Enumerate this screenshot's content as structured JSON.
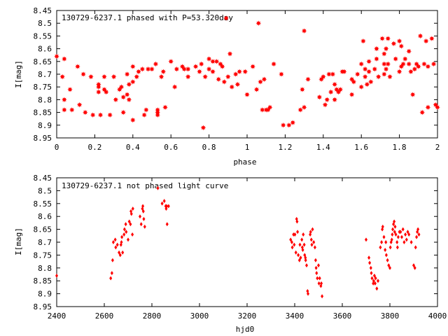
{
  "chart_data": [
    {
      "type": "scatter",
      "title": "130729-6237.1 phased with P=53.320day",
      "xlabel": "phase",
      "ylabel": "I[mag]",
      "xlim": [
        0,
        2
      ],
      "ylim": [
        8.95,
        8.45
      ],
      "y_reversed": true,
      "xticks": [
        "0",
        "0.2",
        "0.4",
        "0.6",
        "0.8",
        "1",
        "1.2",
        "1.4",
        "1.6",
        "1.8",
        "2"
      ],
      "yticks": [
        "8.45",
        "8.5",
        "8.55",
        "8.6",
        "8.65",
        "8.7",
        "8.75",
        "8.8",
        "8.85",
        "8.9",
        "8.95"
      ],
      "grid": false,
      "marker_color": "#ff0000",
      "marker": "asterisk",
      "points": [
        [
          0.0,
          8.63
        ],
        [
          0.03,
          8.71
        ],
        [
          0.04,
          8.64
        ],
        [
          0.04,
          8.8
        ],
        [
          0.04,
          8.84
        ],
        [
          0.07,
          8.76
        ],
        [
          0.08,
          8.84
        ],
        [
          0.11,
          8.67
        ],
        [
          0.12,
          8.82
        ],
        [
          0.14,
          8.7
        ],
        [
          0.15,
          8.85
        ],
        [
          0.18,
          8.71
        ],
        [
          0.19,
          8.86
        ],
        [
          0.22,
          8.74
        ],
        [
          0.22,
          8.75
        ],
        [
          0.22,
          8.77
        ],
        [
          0.23,
          8.86
        ],
        [
          0.25,
          8.71
        ],
        [
          0.25,
          8.76
        ],
        [
          0.26,
          8.77
        ],
        [
          0.28,
          8.86
        ],
        [
          0.3,
          8.71
        ],
        [
          0.31,
          8.8
        ],
        [
          0.33,
          8.76
        ],
        [
          0.34,
          8.75
        ],
        [
          0.35,
          8.79
        ],
        [
          0.35,
          8.85
        ],
        [
          0.37,
          8.7
        ],
        [
          0.37,
          8.78
        ],
        [
          0.38,
          8.74
        ],
        [
          0.38,
          8.8
        ],
        [
          0.4,
          8.67
        ],
        [
          0.4,
          8.73
        ],
        [
          0.4,
          8.88
        ],
        [
          0.42,
          8.71
        ],
        [
          0.43,
          8.69
        ],
        [
          0.45,
          8.68
        ],
        [
          0.46,
          8.86
        ],
        [
          0.47,
          8.84
        ],
        [
          0.48,
          8.68
        ],
        [
          0.5,
          8.68
        ],
        [
          0.52,
          8.66
        ],
        [
          0.53,
          8.84
        ],
        [
          0.53,
          8.85
        ],
        [
          0.53,
          8.86
        ],
        [
          0.55,
          8.71
        ],
        [
          0.56,
          8.69
        ],
        [
          0.57,
          8.83
        ],
        [
          0.6,
          8.65
        ],
        [
          0.62,
          8.75
        ],
        [
          0.63,
          8.68
        ],
        [
          0.66,
          8.67
        ],
        [
          0.67,
          8.68
        ],
        [
          0.69,
          8.68
        ],
        [
          0.69,
          8.71
        ],
        [
          0.73,
          8.67
        ],
        [
          0.75,
          8.69
        ],
        [
          0.76,
          8.66
        ],
        [
          0.77,
          8.91
        ],
        [
          0.78,
          8.71
        ],
        [
          0.8,
          8.64
        ],
        [
          0.8,
          8.68
        ],
        [
          0.82,
          8.65
        ],
        [
          0.82,
          8.69
        ],
        [
          0.84,
          8.65
        ],
        [
          0.85,
          8.72
        ],
        [
          0.86,
          8.66
        ],
        [
          0.87,
          8.67
        ],
        [
          0.88,
          8.73
        ],
        [
          0.89,
          8.48
        ],
        [
          0.9,
          8.71
        ],
        [
          0.91,
          8.62
        ],
        [
          0.92,
          8.75
        ],
        [
          0.94,
          8.7
        ],
        [
          0.95,
          8.74
        ],
        [
          0.96,
          8.69
        ],
        [
          0.99,
          8.69
        ],
        [
          1.0,
          8.78
        ],
        [
          1.03,
          8.67
        ],
        [
          1.05,
          8.76
        ],
        [
          1.06,
          8.5
        ],
        [
          1.07,
          8.73
        ],
        [
          1.08,
          8.84
        ],
        [
          1.09,
          8.72
        ],
        [
          1.1,
          8.84
        ],
        [
          1.11,
          8.84
        ],
        [
          1.12,
          8.83
        ],
        [
          1.14,
          8.66
        ],
        [
          1.18,
          8.7
        ],
        [
          1.19,
          8.9
        ],
        [
          1.22,
          8.9
        ],
        [
          1.24,
          8.89
        ],
        [
          1.28,
          8.84
        ],
        [
          1.29,
          8.76
        ],
        [
          1.3,
          8.53
        ],
        [
          1.3,
          8.83
        ],
        [
          1.32,
          8.72
        ],
        [
          1.38,
          8.79
        ],
        [
          1.39,
          8.72
        ],
        [
          1.4,
          8.71
        ],
        [
          1.41,
          8.82
        ],
        [
          1.42,
          8.8
        ],
        [
          1.43,
          8.7
        ],
        [
          1.44,
          8.77
        ],
        [
          1.45,
          8.7
        ],
        [
          1.46,
          8.74
        ],
        [
          1.46,
          8.8
        ],
        [
          1.47,
          8.76
        ],
        [
          1.48,
          8.77
        ],
        [
          1.49,
          8.76
        ],
        [
          1.5,
          8.69
        ],
        [
          1.51,
          8.69
        ],
        [
          1.55,
          8.72
        ],
        [
          1.55,
          8.78
        ],
        [
          1.56,
          8.73
        ],
        [
          1.58,
          8.7
        ],
        [
          1.6,
          8.66
        ],
        [
          1.6,
          8.75
        ],
        [
          1.61,
          8.57
        ],
        [
          1.62,
          8.68
        ],
        [
          1.62,
          8.71
        ],
        [
          1.63,
          8.74
        ],
        [
          1.64,
          8.65
        ],
        [
          1.64,
          8.69
        ],
        [
          1.65,
          8.73
        ],
        [
          1.67,
          8.68
        ],
        [
          1.68,
          8.6
        ],
        [
          1.68,
          8.64
        ],
        [
          1.69,
          8.71
        ],
        [
          1.71,
          8.56
        ],
        [
          1.72,
          8.62
        ],
        [
          1.72,
          8.66
        ],
        [
          1.72,
          8.7
        ],
        [
          1.73,
          8.6
        ],
        [
          1.73,
          8.68
        ],
        [
          1.74,
          8.56
        ],
        [
          1.74,
          8.66
        ],
        [
          1.75,
          8.71
        ],
        [
          1.77,
          8.58
        ],
        [
          1.78,
          8.64
        ],
        [
          1.8,
          8.57
        ],
        [
          1.8,
          8.69
        ],
        [
          1.81,
          8.59
        ],
        [
          1.81,
          8.67
        ],
        [
          1.82,
          8.66
        ],
        [
          1.83,
          8.64
        ],
        [
          1.85,
          8.61
        ],
        [
          1.85,
          8.66
        ],
        [
          1.86,
          8.69
        ],
        [
          1.87,
          8.78
        ],
        [
          1.88,
          8.68
        ],
        [
          1.89,
          8.66
        ],
        [
          1.9,
          8.67
        ],
        [
          1.91,
          8.55
        ],
        [
          1.92,
          8.85
        ],
        [
          1.93,
          8.66
        ],
        [
          1.94,
          8.57
        ],
        [
          1.95,
          8.67
        ],
        [
          1.95,
          8.83
        ],
        [
          1.97,
          8.56
        ],
        [
          1.98,
          8.66
        ],
        [
          1.99,
          8.82
        ],
        [
          2.0,
          8.83
        ]
      ]
    },
    {
      "type": "scatter",
      "title": "130729-6237.1 not phased light curve",
      "xlabel": "hjd0",
      "ylabel": "I[mag]",
      "xlim": [
        2400,
        4000
      ],
      "ylim": [
        8.95,
        8.45
      ],
      "y_reversed": true,
      "xticks": [
        "2400",
        "2600",
        "2800",
        "3000",
        "3200",
        "3400",
        "3600",
        "3800",
        "4000"
      ],
      "yticks": [
        "8.45",
        "8.5",
        "8.55",
        "8.6",
        "8.65",
        "8.7",
        "8.75",
        "8.8",
        "8.85",
        "8.9",
        "8.95"
      ],
      "grid": false,
      "marker_color": "#ff0000",
      "marker": "diamond",
      "points": [
        [
          2400,
          8.83
        ],
        [
          2627,
          8.84
        ],
        [
          2632,
          8.82
        ],
        [
          2635,
          8.77
        ],
        [
          2638,
          8.7
        ],
        [
          2646,
          8.69
        ],
        [
          2648,
          8.72
        ],
        [
          2655,
          8.71
        ],
        [
          2662,
          8.74
        ],
        [
          2667,
          8.75
        ],
        [
          2670,
          8.71
        ],
        [
          2672,
          8.7
        ],
        [
          2674,
          8.68
        ],
        [
          2677,
          8.74
        ],
        [
          2683,
          8.67
        ],
        [
          2685,
          8.65
        ],
        [
          2690,
          8.63
        ],
        [
          2692,
          8.66
        ],
        [
          2700,
          8.69
        ],
        [
          2705,
          8.62
        ],
        [
          2710,
          8.63
        ],
        [
          2712,
          8.58
        ],
        [
          2714,
          8.59
        ],
        [
          2718,
          8.67
        ],
        [
          2720,
          8.57
        ],
        [
          2750,
          8.6
        ],
        [
          2755,
          8.63
        ],
        [
          2760,
          8.57
        ],
        [
          2762,
          8.56
        ],
        [
          2764,
          8.58
        ],
        [
          2766,
          8.61
        ],
        [
          2770,
          8.64
        ],
        [
          2825,
          8.49
        ],
        [
          2843,
          8.55
        ],
        [
          2852,
          8.54
        ],
        [
          2858,
          8.56
        ],
        [
          2860,
          8.57
        ],
        [
          2862,
          8.56
        ],
        [
          2864,
          8.63
        ],
        [
          2870,
          8.56
        ],
        [
          3383,
          8.69
        ],
        [
          3388,
          8.7
        ],
        [
          3390,
          8.72
        ],
        [
          3395,
          8.67
        ],
        [
          3398,
          8.71
        ],
        [
          3401,
          8.67
        ],
        [
          3405,
          8.74
        ],
        [
          3408,
          8.61
        ],
        [
          3410,
          8.62
        ],
        [
          3412,
          8.66
        ],
        [
          3415,
          8.75
        ],
        [
          3420,
          8.77
        ],
        [
          3422,
          8.71
        ],
        [
          3425,
          8.76
        ],
        [
          3430,
          8.69
        ],
        [
          3432,
          8.72
        ],
        [
          3434,
          8.73
        ],
        [
          3436,
          8.67
        ],
        [
          3440,
          8.71
        ],
        [
          3442,
          8.75
        ],
        [
          3445,
          8.76
        ],
        [
          3446,
          8.77
        ],
        [
          3450,
          8.79
        ],
        [
          3454,
          8.89
        ],
        [
          3456,
          8.9
        ],
        [
          3465,
          8.67
        ],
        [
          3467,
          8.66
        ],
        [
          3470,
          8.69
        ],
        [
          3472,
          8.71
        ],
        [
          3475,
          8.65
        ],
        [
          3480,
          8.7
        ],
        [
          3485,
          8.72
        ],
        [
          3488,
          8.77
        ],
        [
          3490,
          8.8
        ],
        [
          3492,
          8.82
        ],
        [
          3495,
          8.84
        ],
        [
          3500,
          8.79
        ],
        [
          3502,
          8.86
        ],
        [
          3505,
          8.84
        ],
        [
          3510,
          8.87
        ],
        [
          3512,
          8.86
        ],
        [
          3515,
          8.91
        ],
        [
          3700,
          8.69
        ],
        [
          3712,
          8.76
        ],
        [
          3715,
          8.78
        ],
        [
          3720,
          8.8
        ],
        [
          3722,
          8.82
        ],
        [
          3725,
          8.84
        ],
        [
          3730,
          8.86
        ],
        [
          3732,
          8.85
        ],
        [
          3735,
          8.83
        ],
        [
          3738,
          8.86
        ],
        [
          3740,
          8.84
        ],
        [
          3745,
          8.88
        ],
        [
          3750,
          8.85
        ],
        [
          3760,
          8.72
        ],
        [
          3765,
          8.7
        ],
        [
          3768,
          8.65
        ],
        [
          3770,
          8.64
        ],
        [
          3775,
          8.68
        ],
        [
          3780,
          8.73
        ],
        [
          3783,
          8.7
        ],
        [
          3785,
          8.75
        ],
        [
          3790,
          8.77
        ],
        [
          3795,
          8.79
        ],
        [
          3800,
          8.8
        ],
        [
          3802,
          8.72
        ],
        [
          3805,
          8.7
        ],
        [
          3808,
          8.69
        ],
        [
          3810,
          8.67
        ],
        [
          3812,
          8.65
        ],
        [
          3815,
          8.63
        ],
        [
          3818,
          8.62
        ],
        [
          3820,
          8.66
        ],
        [
          3822,
          8.64
        ],
        [
          3825,
          8.67
        ],
        [
          3830,
          8.7
        ],
        [
          3832,
          8.72
        ],
        [
          3835,
          8.68
        ],
        [
          3840,
          8.66
        ],
        [
          3845,
          8.66
        ],
        [
          3850,
          8.68
        ],
        [
          3855,
          8.65
        ],
        [
          3860,
          8.7
        ],
        [
          3865,
          8.67
        ],
        [
          3870,
          8.69
        ],
        [
          3875,
          8.66
        ],
        [
          3880,
          8.67
        ],
        [
          3890,
          8.7
        ],
        [
          3900,
          8.79
        ],
        [
          3905,
          8.8
        ],
        [
          3908,
          8.72
        ],
        [
          3912,
          8.68
        ],
        [
          3915,
          8.66
        ],
        [
          3918,
          8.65
        ],
        [
          3922,
          8.67
        ]
      ]
    }
  ]
}
